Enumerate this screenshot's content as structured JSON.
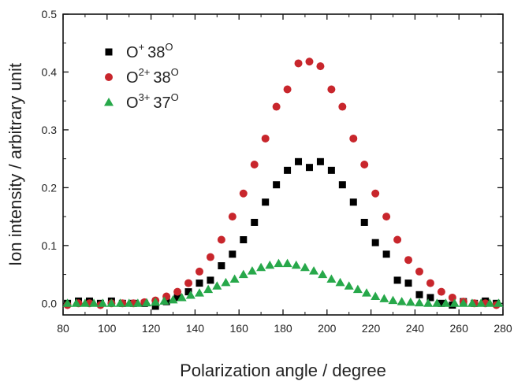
{
  "chart_data": {
    "type": "scatter",
    "xlabel": "Polarization angle / degree",
    "ylabel": "Ion intensity / arbitrary unit",
    "xlim": [
      80,
      280
    ],
    "ylim": [
      -0.02,
      0.5
    ],
    "xticks": [
      80,
      100,
      120,
      140,
      160,
      180,
      200,
      220,
      240,
      260,
      280
    ],
    "yticks": [
      0.0,
      0.1,
      0.2,
      0.3,
      0.4,
      0.5
    ],
    "grid": false,
    "legend_position": "top-left",
    "series": [
      {
        "name": "O+ 38°",
        "label_base": "O",
        "label_sup": "+",
        "label_value": "38",
        "label_unit": "O",
        "marker": "square",
        "color": "#000000",
        "x": [
          82,
          87,
          92,
          97,
          102,
          107,
          112,
          117,
          122,
          127,
          132,
          137,
          142,
          147,
          152,
          157,
          162,
          167,
          172,
          177,
          182,
          187,
          192,
          197,
          202,
          207,
          212,
          217,
          222,
          227,
          232,
          237,
          242,
          247,
          252,
          257,
          262,
          267,
          272,
          277
        ],
        "y": [
          0.0,
          0.004,
          0.004,
          0.0,
          0.004,
          0.0,
          0.0,
          0.0,
          -0.005,
          0.003,
          0.01,
          0.02,
          0.035,
          0.04,
          0.065,
          0.085,
          0.11,
          0.14,
          0.175,
          0.205,
          0.23,
          0.245,
          0.235,
          0.245,
          0.23,
          0.205,
          0.175,
          0.14,
          0.105,
          0.085,
          0.04,
          0.035,
          0.015,
          0.01,
          0.0,
          -0.003,
          0.003,
          0.0,
          0.004,
          0.0
        ]
      },
      {
        "name": "O2+ 38°",
        "label_base": "O",
        "label_sup": "2+",
        "label_value": "38",
        "label_unit": "O",
        "marker": "circle",
        "color": "#c8262c",
        "x": [
          82,
          87,
          92,
          97,
          102,
          107,
          112,
          117,
          122,
          127,
          132,
          137,
          142,
          147,
          152,
          157,
          162,
          167,
          172,
          177,
          182,
          187,
          192,
          197,
          202,
          207,
          212,
          217,
          222,
          227,
          232,
          237,
          242,
          247,
          252,
          257,
          262,
          267,
          272,
          277
        ],
        "y": [
          -0.003,
          0.0,
          0.0,
          -0.003,
          0.0,
          0.0,
          0.0,
          0.002,
          0.005,
          0.012,
          0.02,
          0.035,
          0.055,
          0.08,
          0.11,
          0.15,
          0.19,
          0.24,
          0.285,
          0.34,
          0.37,
          0.415,
          0.418,
          0.41,
          0.37,
          0.34,
          0.285,
          0.24,
          0.19,
          0.15,
          0.11,
          0.075,
          0.055,
          0.035,
          0.02,
          0.01,
          0.003,
          0.0,
          0.0,
          -0.003
        ]
      },
      {
        "name": "O3+ 37°",
        "label_base": "O",
        "label_sup": "3+",
        "label_value": "37",
        "label_unit": "O",
        "marker": "triangle",
        "color": "#27a84a",
        "x": [
          82,
          86,
          90,
          94,
          98,
          102,
          106,
          110,
          114,
          118,
          122,
          126,
          130,
          134,
          138,
          142,
          146,
          150,
          154,
          158,
          162,
          166,
          170,
          174,
          178,
          182,
          186,
          190,
          194,
          198,
          202,
          206,
          210,
          214,
          218,
          222,
          226,
          230,
          234,
          238,
          242,
          246,
          250,
          254,
          258,
          262,
          266,
          270,
          274,
          278
        ],
        "y": [
          0.0,
          0.0,
          0.0,
          0.0,
          0.0,
          0.0,
          0.0,
          0.0,
          0.0,
          0.001,
          0.002,
          0.004,
          0.006,
          0.01,
          0.014,
          0.018,
          0.024,
          0.03,
          0.036,
          0.042,
          0.05,
          0.056,
          0.062,
          0.066,
          0.069,
          0.069,
          0.066,
          0.062,
          0.056,
          0.05,
          0.042,
          0.036,
          0.03,
          0.024,
          0.018,
          0.012,
          0.008,
          0.005,
          0.003,
          0.002,
          0.001,
          0.0,
          0.0,
          0.0,
          0.0,
          0.0,
          0.0,
          0.0,
          0.0,
          0.0
        ]
      }
    ]
  }
}
